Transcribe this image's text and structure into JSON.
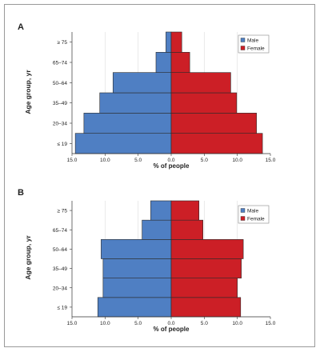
{
  "colors": {
    "male": "#4f7fc3",
    "female": "#cc1f26",
    "grid": "#e2e2e2",
    "axis": "#333333"
  },
  "chart_data": [
    {
      "type": "bar",
      "panel_label": "A",
      "orientation": "horizontal-diverging",
      "categories": [
        "≤ 19",
        "20–34",
        "35–49",
        "50–64",
        "65–74",
        "≥ 75"
      ],
      "series": [
        {
          "name": "Male",
          "values": [
            14.5,
            13.2,
            10.8,
            8.8,
            2.3,
            0.8
          ]
        },
        {
          "name": "Female",
          "values": [
            13.8,
            12.9,
            9.9,
            9.0,
            2.8,
            1.6
          ]
        }
      ],
      "xticks": [
        "15.0",
        "10.0",
        "5.0",
        "0.0",
        "5.0",
        "10.0",
        "15.0"
      ],
      "xlim": [
        -15,
        15
      ],
      "xlabel": "% of people",
      "ylabel": "Age group, yr",
      "grid": true,
      "legend": "top-right"
    },
    {
      "type": "bar",
      "panel_label": "B",
      "orientation": "horizontal-diverging",
      "categories": [
        "≤ 19",
        "20–34",
        "35–49",
        "50–64",
        "65–74",
        "≥ 75"
      ],
      "series": [
        {
          "name": "Male",
          "values": [
            11.1,
            10.3,
            10.3,
            10.6,
            4.4,
            3.1
          ]
        },
        {
          "name": "Female",
          "values": [
            10.5,
            10.0,
            10.6,
            10.9,
            4.8,
            4.2
          ]
        }
      ],
      "xticks": [
        "15.0",
        "10.0",
        "5.0",
        "0.0",
        "5.0",
        "10.0",
        "15.0"
      ],
      "xlim": [
        -15,
        15
      ],
      "xlabel": "% of people",
      "ylabel": "Age group, yr",
      "grid": true,
      "legend": "top-right"
    }
  ]
}
